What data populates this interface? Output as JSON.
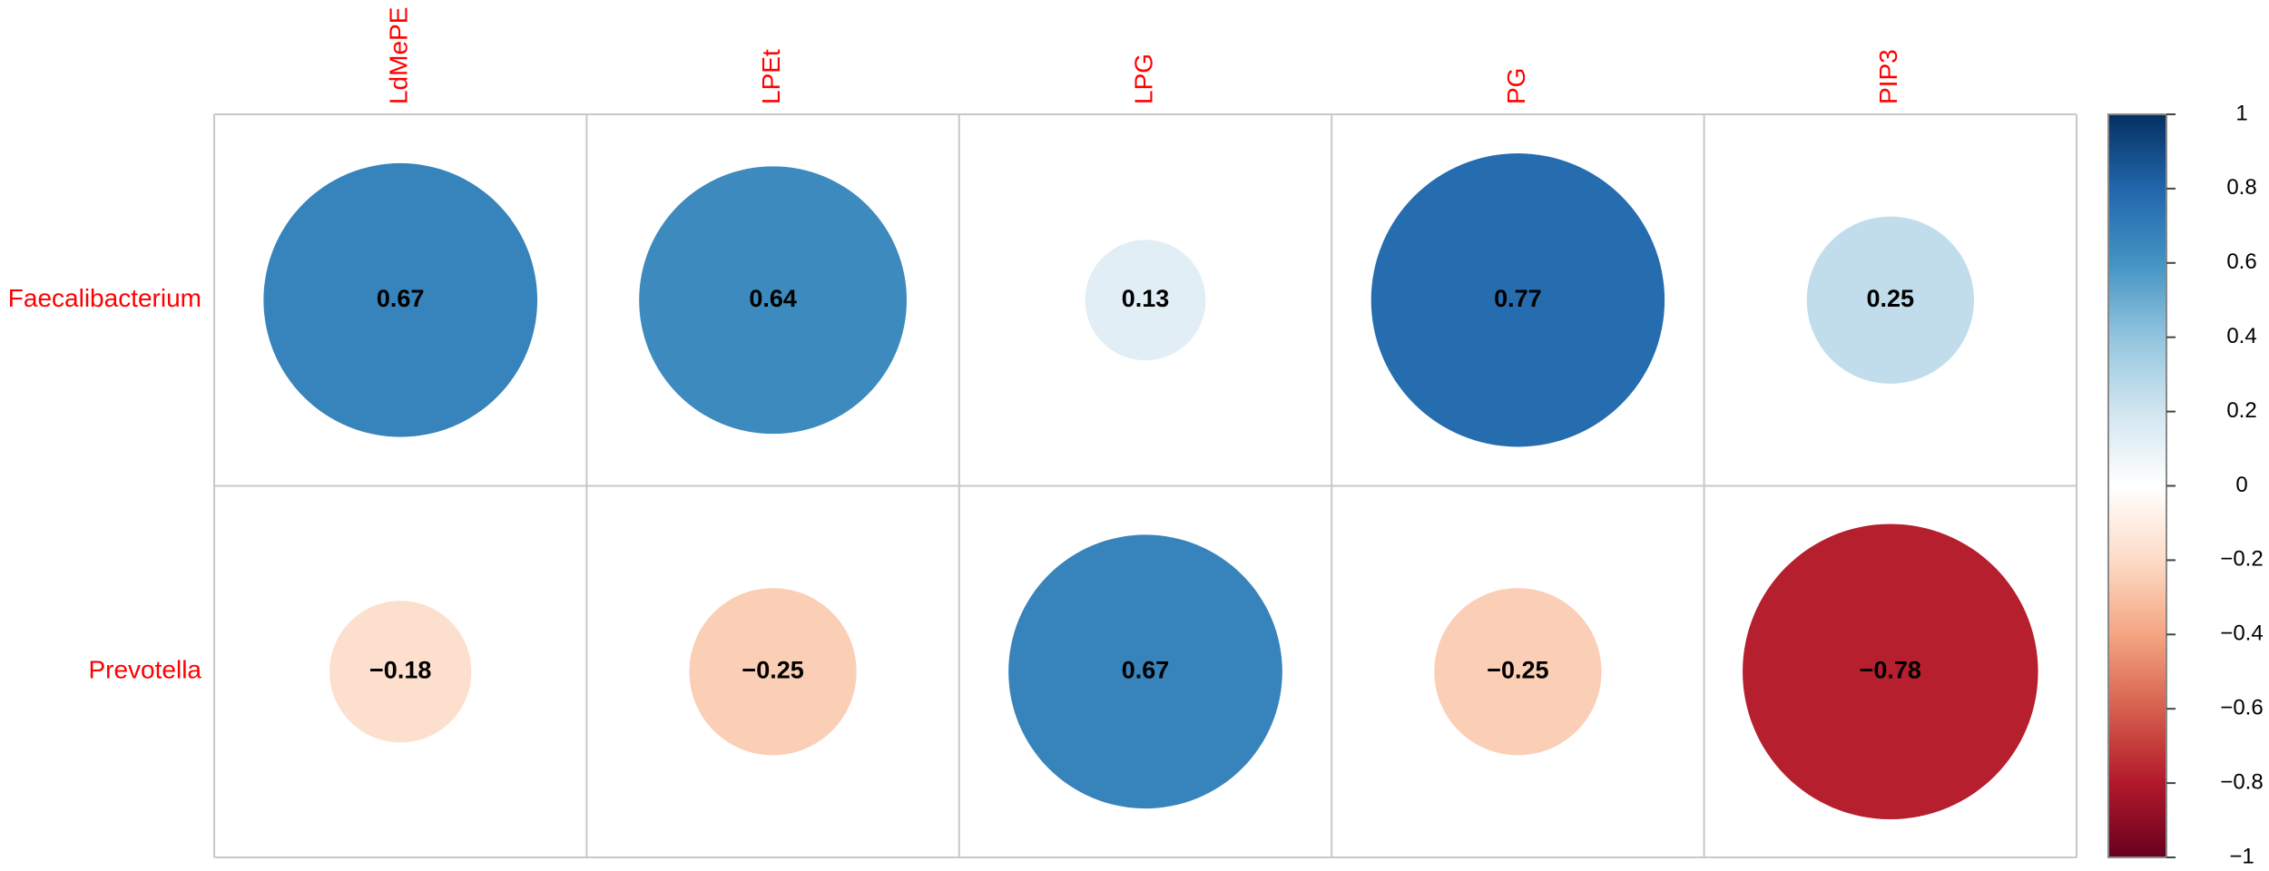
{
  "chart_data": {
    "type": "corrplot",
    "columns": [
      "LdMePE",
      "LPEt",
      "LPG",
      "PG",
      "PIP3"
    ],
    "series": [
      {
        "name": "Faecalibacterium",
        "values": [
          0.67,
          0.64,
          0.13,
          0.77,
          0.25
        ],
        "value_labels": [
          "0.67",
          "0.64",
          "0.13",
          "0.77",
          "0.25"
        ]
      },
      {
        "name": "Prevotella",
        "values": [
          -0.18,
          -0.25,
          0.67,
          -0.25,
          -0.78
        ],
        "value_labels": [
          "−0.18",
          "−0.25",
          "0.67",
          "−0.25",
          "−0.78"
        ]
      }
    ],
    "label_color": "#ff0000",
    "colorscale": [
      "#67001F",
      "#B2182B",
      "#D6604D",
      "#F4A582",
      "#FDDBC7",
      "#FFFFFF",
      "#D1E5F0",
      "#92C5DE",
      "#4393C3",
      "#2166AC",
      "#053061"
    ],
    "ylim": [
      -1,
      1
    ],
    "yticks": [
      {
        "value": -1,
        "label": "−1"
      },
      {
        "value": -0.8,
        "label": "−0.8"
      },
      {
        "value": -0.6,
        "label": "−0.6"
      },
      {
        "value": -0.4,
        "label": "−0.4"
      },
      {
        "value": -0.2,
        "label": "−0.2"
      },
      0,
      0.2,
      0.4,
      0.6,
      0.8,
      1
    ]
  }
}
